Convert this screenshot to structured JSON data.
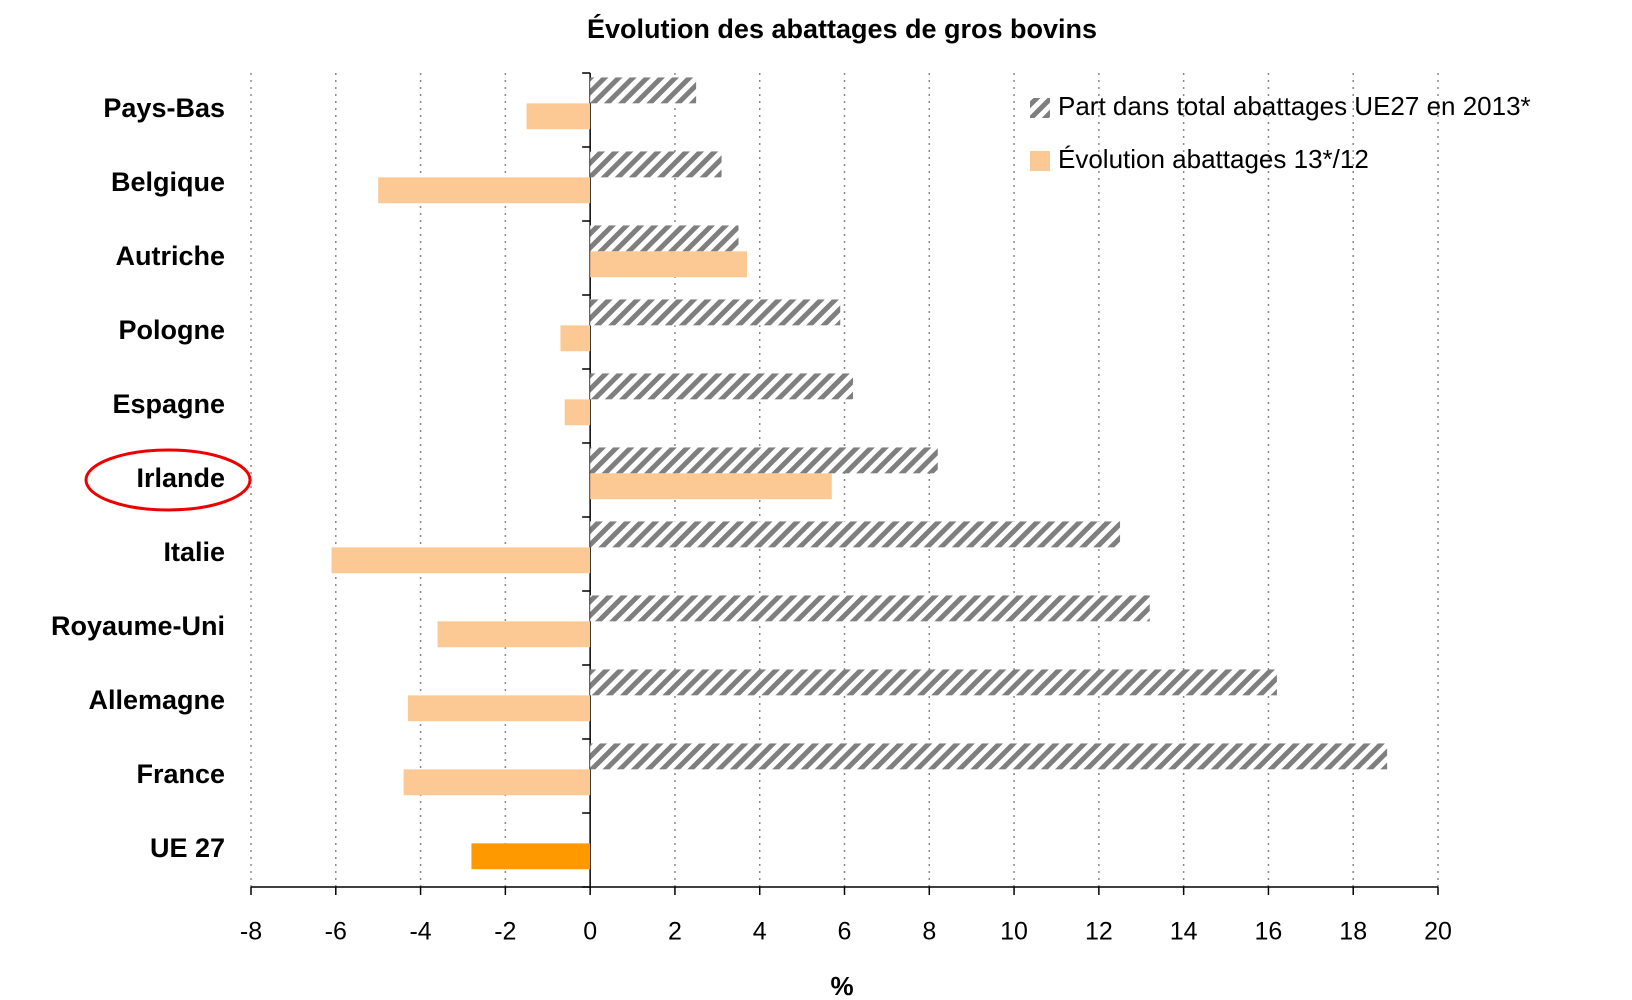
{
  "chart_data": {
    "type": "hbar",
    "title": "Évolution des abattages de gros bovins",
    "x_label": "%",
    "categories": [
      "Pays-Bas",
      "Belgique",
      "Autriche",
      "Pologne",
      "Espagne",
      "Irlande",
      "Italie",
      "Royaume-Uni",
      "Allemagne",
      "France",
      "UE 27"
    ],
    "series": [
      {
        "name": "Part dans total abattages UE27 en 2013*",
        "color": "#7f7f7f",
        "pattern": "hatched",
        "values": [
          2.5,
          3.1,
          3.5,
          5.9,
          6.2,
          8.2,
          12.5,
          13.2,
          16.2,
          18.8,
          null
        ]
      },
      {
        "name": "Évolution abattages 13*/12",
        "color": "#fcc995",
        "colors": [
          "#fcc995",
          "#fcc995",
          "#fcc995",
          "#fcc995",
          "#fcc995",
          "#fcc995",
          "#fcc995",
          "#fcc995",
          "#fcc995",
          "#fcc995",
          "#ff9900"
        ],
        "values": [
          -1.5,
          -5.0,
          3.7,
          -0.7,
          -0.6,
          5.7,
          -6.1,
          -3.6,
          -4.3,
          -4.4,
          -2.8
        ]
      }
    ],
    "xlim": [
      -8,
      20
    ],
    "xticks": [
      -8,
      -6,
      -4,
      -2,
      0,
      2,
      4,
      6,
      8,
      10,
      12,
      14,
      16,
      18,
      20
    ],
    "grid": true,
    "legend": "top-right"
  }
}
